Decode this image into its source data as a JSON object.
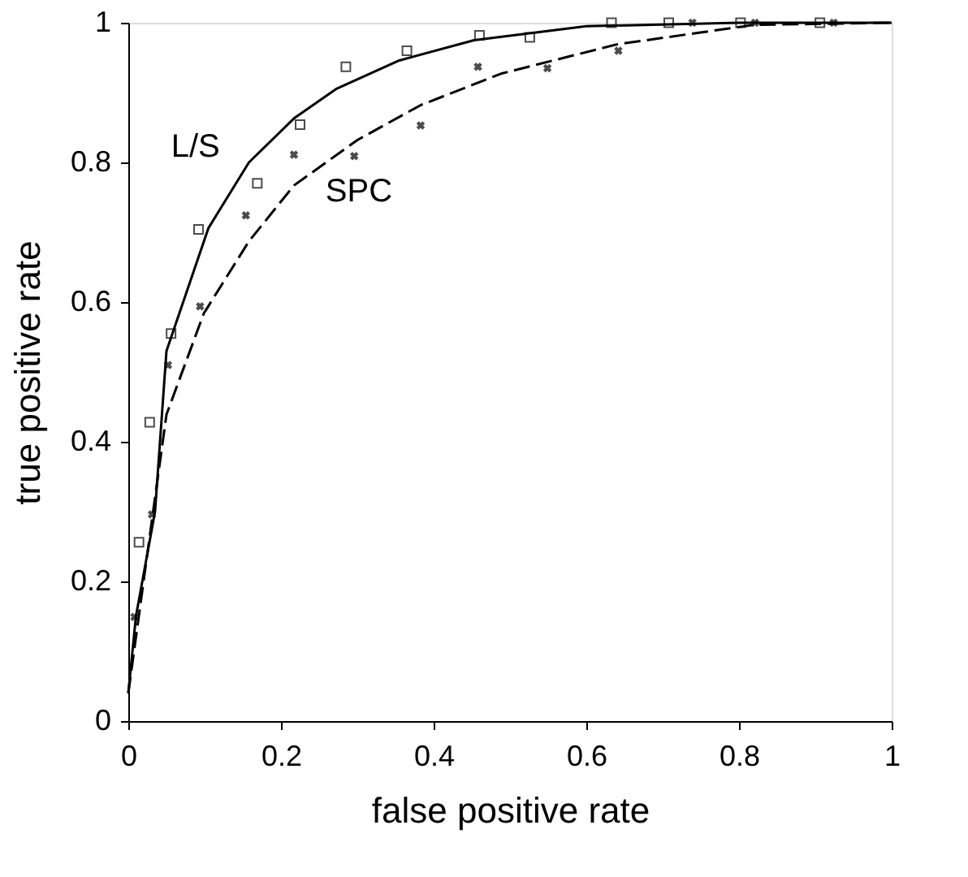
{
  "chart_data": {
    "type": "line",
    "xlabel": "false positive rate",
    "ylabel": "true positive rate",
    "xlim": [
      0,
      1
    ],
    "ylim": [
      0,
      1
    ],
    "xticks": [
      0,
      0.2,
      0.4,
      0.6,
      0.8,
      1
    ],
    "yticks": [
      0,
      0.2,
      0.4,
      0.6,
      0.8,
      1
    ],
    "grid": false,
    "series": [
      {
        "name": "L/S",
        "color": "#000000",
        "line_style": "solid",
        "marker": "none",
        "x": [
          0,
          0.01,
          0.035,
          0.05,
          0.105,
          0.158,
          0.217,
          0.272,
          0.355,
          0.453,
          0.6,
          0.8,
          1
        ],
        "values": [
          0.04,
          0.15,
          0.3,
          0.53,
          0.706,
          0.8,
          0.863,
          0.905,
          0.946,
          0.975,
          0.995,
          1,
          1
        ]
      },
      {
        "name": "SPC",
        "color": "#000000",
        "line_style": "dashed",
        "marker": "none",
        "x": [
          0,
          0.03,
          0.05,
          0.099,
          0.158,
          0.217,
          0.3,
          0.383,
          0.488,
          0.64,
          0.82,
          1
        ],
        "values": [
          0.04,
          0.28,
          0.439,
          0.584,
          0.687,
          0.767,
          0.832,
          0.882,
          0.927,
          0.969,
          0.997,
          1
        ]
      },
      {
        "type": "scatter",
        "color": "#000000",
        "marker": "square",
        "x": [
          0.014,
          0.028,
          0.056,
          0.092,
          0.169,
          0.225,
          0.285,
          0.365,
          0.46,
          0.526,
          0.633,
          0.708,
          0.802,
          0.906
        ],
        "values": [
          0.256,
          0.428,
          0.555,
          0.704,
          0.77,
          0.854,
          0.937,
          0.96,
          0.982,
          0.979,
          1,
          1,
          1,
          1
        ]
      },
      {
        "type": "scatter",
        "color": "#000000",
        "marker": "cross",
        "x": [
          0.008,
          0.031,
          0.052,
          0.094,
          0.154,
          0.217,
          0.296,
          0.383,
          0.458,
          0.549,
          0.642,
          0.739,
          0.821,
          0.924
        ],
        "values": [
          0.149,
          0.296,
          0.51,
          0.594,
          0.724,
          0.811,
          0.809,
          0.853,
          0.937,
          0.935,
          0.96,
          1,
          1,
          1
        ]
      }
    ]
  }
}
